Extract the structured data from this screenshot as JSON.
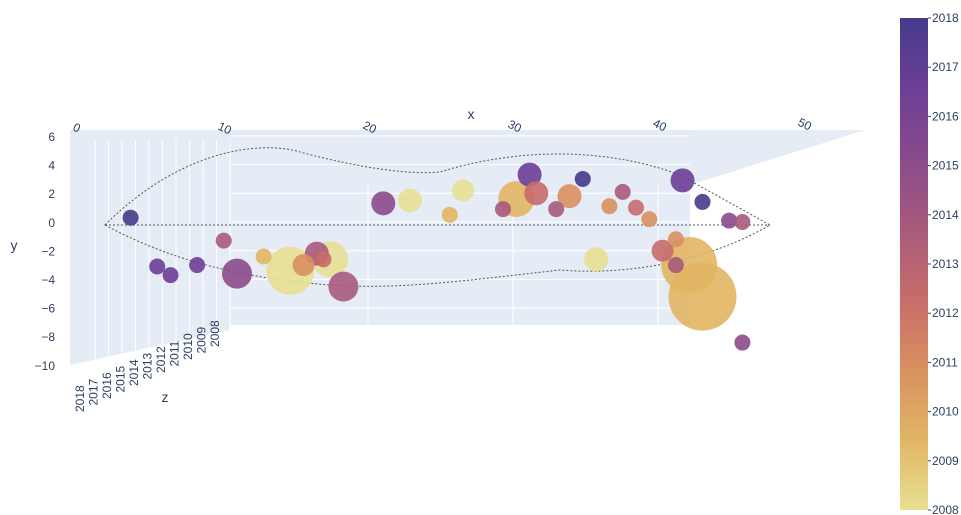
{
  "colors": {
    "pane": "#e5ecf6",
    "colorscale": [
      "#e8e094",
      "#e1b563",
      "#d99060",
      "#c76c6b",
      "#a85a7c",
      "#8a4a8b",
      "#6b3f96",
      "#453b8c"
    ]
  },
  "chart_data": {
    "type": "scatter3d",
    "title": "",
    "axes": {
      "x": {
        "label": "x",
        "ticks": [
          "0",
          "10",
          "20",
          "30",
          "40",
          "50"
        ]
      },
      "y": {
        "label": "y",
        "ticks": [
          "6",
          "4",
          "2",
          "0",
          "−2",
          "−4",
          "−6",
          "−8",
          "−10"
        ],
        "range": [
          -10,
          6
        ]
      },
      "z": {
        "label": "z",
        "ticks": [
          "2018",
          "2017",
          "2016",
          "2015",
          "2014",
          "2013",
          "2012",
          "2011",
          "2010",
          "2009",
          "2008"
        ]
      }
    },
    "colorbar": {
      "range": [
        2008,
        2018
      ],
      "ticks": [
        "2018",
        "2017",
        "2016",
        "2015",
        "2014",
        "2013",
        "2012",
        "2011",
        "2010",
        "2009",
        "2008"
      ]
    },
    "outline": "fish-shaped dotted outline",
    "points": [
      {
        "x": 2,
        "y": 0.3,
        "z": 2018,
        "size": 8
      },
      {
        "x": 4,
        "y": -3.1,
        "z": 2017,
        "size": 8
      },
      {
        "x": 5,
        "y": -3.7,
        "z": 2017,
        "size": 8
      },
      {
        "x": 7,
        "y": -3.0,
        "z": 2016,
        "size": 8
      },
      {
        "x": 9,
        "y": -1.3,
        "z": 2014,
        "size": 8
      },
      {
        "x": 10,
        "y": -3.6,
        "z": 2015,
        "size": 15
      },
      {
        "x": 12,
        "y": -2.4,
        "z": 2009,
        "size": 8
      },
      {
        "x": 14,
        "y": -3.4,
        "z": 2008,
        "size": 24
      },
      {
        "x": 15,
        "y": -3.0,
        "z": 2011,
        "size": 11
      },
      {
        "x": 16,
        "y": -2.2,
        "z": 2013,
        "size": 12
      },
      {
        "x": 16.5,
        "y": -2.6,
        "z": 2012,
        "size": 8
      },
      {
        "x": 17,
        "y": -2.6,
        "z": 2008,
        "size": 18
      },
      {
        "x": 18,
        "y": -4.5,
        "z": 2014,
        "size": 15
      },
      {
        "x": 21,
        "y": 1.3,
        "z": 2015,
        "size": 12
      },
      {
        "x": 23,
        "y": 1.5,
        "z": 2008,
        "size": 12
      },
      {
        "x": 26,
        "y": 0.5,
        "z": 2010,
        "size": 8
      },
      {
        "x": 27,
        "y": 2.2,
        "z": 2008,
        "size": 11
      },
      {
        "x": 30,
        "y": 0.9,
        "z": 2014,
        "size": 8
      },
      {
        "x": 31,
        "y": 1.6,
        "z": 2009,
        "size": 18
      },
      {
        "x": 32,
        "y": 3.3,
        "z": 2016,
        "size": 12
      },
      {
        "x": 32.5,
        "y": 2.0,
        "z": 2012,
        "size": 12
      },
      {
        "x": 34,
        "y": 0.9,
        "z": 2014,
        "size": 8
      },
      {
        "x": 35,
        "y": 1.8,
        "z": 2011,
        "size": 12
      },
      {
        "x": 36,
        "y": 3.0,
        "z": 2018,
        "size": 8
      },
      {
        "x": 37,
        "y": -2.6,
        "z": 2008,
        "size": 12
      },
      {
        "x": 38,
        "y": 1.1,
        "z": 2011,
        "size": 8
      },
      {
        "x": 39,
        "y": 2.1,
        "z": 2014,
        "size": 8
      },
      {
        "x": 40,
        "y": 1.0,
        "z": 2012,
        "size": 8
      },
      {
        "x": 41,
        "y": 0.2,
        "z": 2011,
        "size": 8
      },
      {
        "x": 42,
        "y": -2.0,
        "z": 2012,
        "size": 11
      },
      {
        "x": 43,
        "y": -1.2,
        "z": 2011,
        "size": 8
      },
      {
        "x": 43,
        "y": -3.0,
        "z": 2014,
        "size": 8
      },
      {
        "x": 43.5,
        "y": 2.9,
        "z": 2016,
        "size": 12
      },
      {
        "x": 44,
        "y": -3.0,
        "z": 2010,
        "size": 28
      },
      {
        "x": 45,
        "y": -5.2,
        "z": 2010,
        "size": 34
      },
      {
        "x": 45,
        "y": 1.4,
        "z": 2018,
        "size": 8
      },
      {
        "x": 47,
        "y": 0.1,
        "z": 2015,
        "size": 8
      },
      {
        "x": 48,
        "y": 0.0,
        "z": 2014,
        "size": 8
      },
      {
        "x": 48,
        "y": -8.4,
        "z": 2015,
        "size": 8
      }
    ]
  }
}
